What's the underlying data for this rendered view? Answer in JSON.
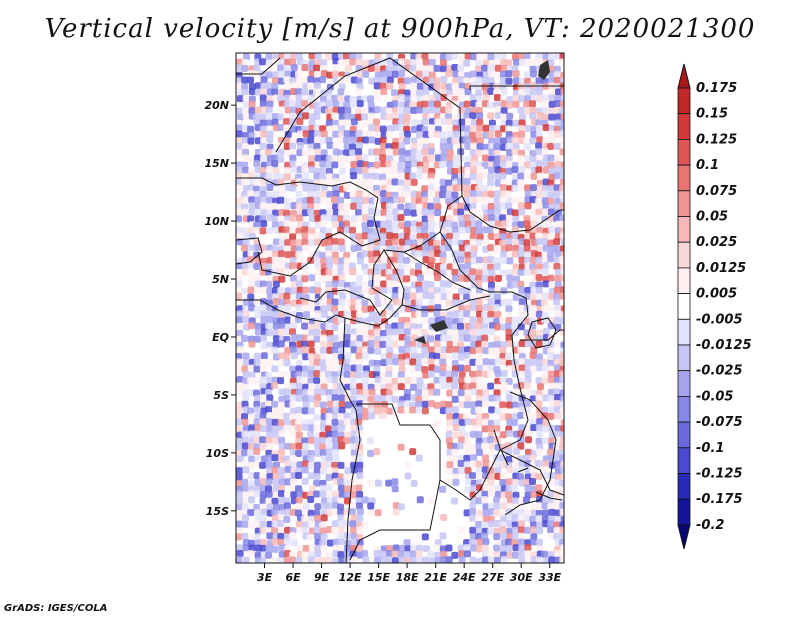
{
  "title": "Vertical velocity [m/s] at 900hPa, VT: 2020021300",
  "footer": "GrADS: IGES/COLA",
  "map": {
    "variable": "Vertical velocity",
    "units": "m/s",
    "level": "900hPa",
    "valid_time": "2020021300",
    "lon_range": [
      0,
      34.5
    ],
    "lat_range": [
      -19.5,
      24.5
    ],
    "lon_ticks": [
      {
        "value": 3,
        "label": "3E"
      },
      {
        "value": 6,
        "label": "6E"
      },
      {
        "value": 9,
        "label": "9E"
      },
      {
        "value": 12,
        "label": "12E"
      },
      {
        "value": 15,
        "label": "15E"
      },
      {
        "value": 18,
        "label": "18E"
      },
      {
        "value": 21,
        "label": "21E"
      },
      {
        "value": 24,
        "label": "24E"
      },
      {
        "value": 27,
        "label": "27E"
      },
      {
        "value": 30,
        "label": "30E"
      },
      {
        "value": 33,
        "label": "33E"
      }
    ],
    "lat_ticks": [
      {
        "value": 20,
        "label": "20N"
      },
      {
        "value": 15,
        "label": "15N"
      },
      {
        "value": 10,
        "label": "10N"
      },
      {
        "value": 5,
        "label": "5N"
      },
      {
        "value": 0,
        "label": "EQ"
      },
      {
        "value": -5,
        "label": "5S"
      },
      {
        "value": -10,
        "label": "10S"
      },
      {
        "value": -15,
        "label": "15S"
      }
    ],
    "blank_region": "southern interior (Angola / Zambia area) shown mostly white"
  },
  "colorbar": {
    "labels": [
      "0.175",
      "0.15",
      "0.125",
      "0.1",
      "0.075",
      "0.05",
      "0.025",
      "0.0125",
      "0.005",
      "-0.005",
      "-0.0125",
      "-0.025",
      "-0.05",
      "-0.075",
      "-0.1",
      "-0.125",
      "-0.175",
      "-0.2"
    ],
    "colors": [
      "#a81a1a",
      "#c22828",
      "#d23a3a",
      "#de5555",
      "#e87474",
      "#f09595",
      "#f6b8b8",
      "#fbd8d8",
      "#fef0f0",
      "#ffffff",
      "#e3e3fb",
      "#c6c6f5",
      "#a6a6ee",
      "#8888e6",
      "#6a6adc",
      "#4a4ad0",
      "#2a2ab8",
      "#15159a",
      "#07077a"
    ],
    "top_cap_color": "#a81a1a",
    "bottom_cap_color": "#07077a"
  }
}
